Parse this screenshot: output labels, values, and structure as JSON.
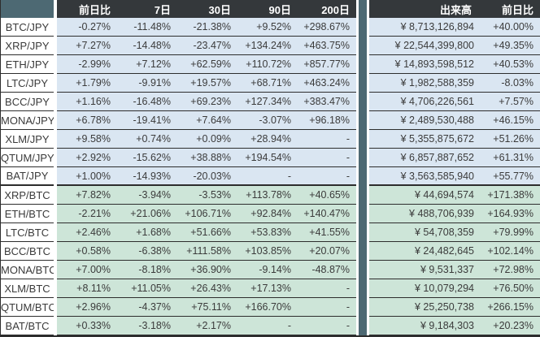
{
  "colors": {
    "header_bg": "#34383b",
    "accent_teal": "#4d6973",
    "jpy_row_bg": "#dae6f2",
    "btc_row_bg": "#cde5d8",
    "border": "#2d2d2d",
    "text": "#3b3b3b"
  },
  "header": {
    "day_change": "前日比",
    "d7": "7日",
    "d30": "30日",
    "d90": "90日",
    "d200": "200日",
    "volume": "出来高",
    "volume_day_change": "前日比"
  },
  "sections": [
    {
      "name": "jpy-pairs",
      "css": "jpy",
      "rows": [
        {
          "pair": "BTC/JPY",
          "changes": [
            "-0.27%",
            "-11.48%",
            "-21.38%",
            "+9.52%",
            "+298.67%"
          ],
          "volume": "¥ 8,713,126,894",
          "volume_change": "+40.00%"
        },
        {
          "pair": "XRP/JPY",
          "changes": [
            "+7.27%",
            "-14.48%",
            "-23.47%",
            "+134.24%",
            "+463.75%"
          ],
          "volume": "¥ 22,544,399,800",
          "volume_change": "+49.35%"
        },
        {
          "pair": "ETH/JPY",
          "changes": [
            "-2.99%",
            "+7.12%",
            "+62.59%",
            "+110.72%",
            "+857.77%"
          ],
          "volume": "¥ 14,893,598,512",
          "volume_change": "+40.53%"
        },
        {
          "pair": "LTC/JPY",
          "changes": [
            "+1.79%",
            "-9.91%",
            "+19.57%",
            "+68.71%",
            "+463.24%"
          ],
          "volume": "¥ 1,982,588,359",
          "volume_change": "-8.03%"
        },
        {
          "pair": "BCC/JPY",
          "changes": [
            "+1.16%",
            "-16.48%",
            "+69.23%",
            "+127.34%",
            "+383.47%"
          ],
          "volume": "¥ 4,706,226,561",
          "volume_change": "+7.57%"
        },
        {
          "pair": "MONA/JPY",
          "changes": [
            "+6.78%",
            "-19.41%",
            "+7.64%",
            "-3.07%",
            "+96.18%"
          ],
          "volume": "¥ 2,489,530,488",
          "volume_change": "+46.15%"
        },
        {
          "pair": "XLM/JPY",
          "changes": [
            "+9.58%",
            "+0.74%",
            "+0.09%",
            "+28.94%",
            "-"
          ],
          "volume": "¥ 5,355,875,672",
          "volume_change": "+51.26%"
        },
        {
          "pair": "QTUM/JPY",
          "changes": [
            "+2.92%",
            "-15.62%",
            "+38.88%",
            "+194.54%",
            "-"
          ],
          "volume": "¥ 6,857,887,652",
          "volume_change": "+61.31%"
        },
        {
          "pair": "BAT/JPY",
          "changes": [
            "+1.00%",
            "-14.93%",
            "-20.03%",
            "-",
            "-"
          ],
          "volume": "¥ 3,563,585,940",
          "volume_change": "+55.77%"
        }
      ]
    },
    {
      "name": "btc-pairs",
      "css": "btc",
      "rows": [
        {
          "pair": "XRP/BTC",
          "changes": [
            "+7.82%",
            "-3.94%",
            "-3.53%",
            "+113.78%",
            "+40.65%"
          ],
          "volume": "¥ 44,694,574",
          "volume_change": "+171.38%"
        },
        {
          "pair": "ETH/BTC",
          "changes": [
            "-2.21%",
            "+21.06%",
            "+106.71%",
            "+92.84%",
            "+140.47%"
          ],
          "volume": "¥ 488,706,939",
          "volume_change": "+164.93%"
        },
        {
          "pair": "LTC/BTC",
          "changes": [
            "+2.46%",
            "+1.68%",
            "+51.66%",
            "+53.83%",
            "+41.55%"
          ],
          "volume": "¥ 54,708,359",
          "volume_change": "+79.99%"
        },
        {
          "pair": "BCC/BTC",
          "changes": [
            "+0.58%",
            "-6.38%",
            "+111.58%",
            "+103.85%",
            "+20.07%"
          ],
          "volume": "¥ 24,482,645",
          "volume_change": "+102.14%"
        },
        {
          "pair": "MONA/BTC",
          "changes": [
            "+7.00%",
            "-8.18%",
            "+36.90%",
            "-9.14%",
            "-48.87%"
          ],
          "volume": "¥ 9,531,337",
          "volume_change": "+72.98%"
        },
        {
          "pair": "XLM/BTC",
          "changes": [
            "+8.11%",
            "+11.05%",
            "+26.43%",
            "+17.13%",
            "-"
          ],
          "volume": "¥ 10,079,294",
          "volume_change": "+76.50%"
        },
        {
          "pair": "QTUM/BTC",
          "changes": [
            "+2.96%",
            "-4.37%",
            "+75.11%",
            "+166.70%",
            "-"
          ],
          "volume": "¥ 25,250,738",
          "volume_change": "+266.15%"
        },
        {
          "pair": "BAT/BTC",
          "changes": [
            "+0.33%",
            "-3.18%",
            "+2.17%",
            "-",
            "-"
          ],
          "volume": "¥ 9,184,303",
          "volume_change": "+20.23%"
        }
      ]
    }
  ]
}
